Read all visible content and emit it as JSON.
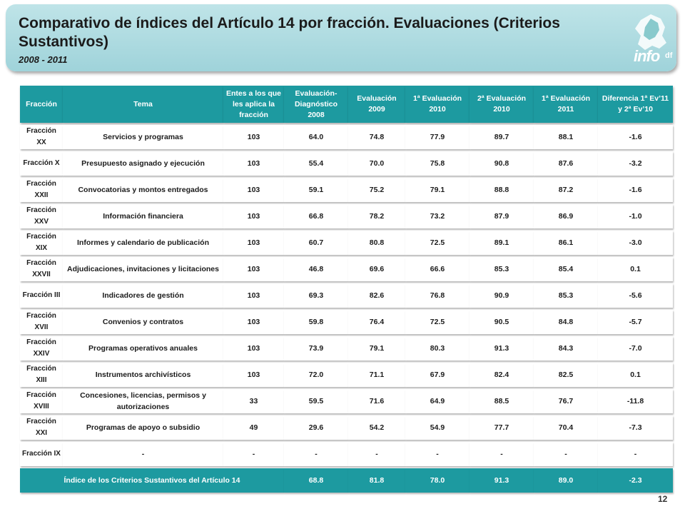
{
  "header": {
    "title": "Comparativo de índices del Artículo 14 por fracción. Evaluaciones (Criterios Sustantivos)",
    "subtitle": "2008 - 2011",
    "logo_text": "info",
    "logo_badge": "df"
  },
  "table": {
    "columns": [
      "Fracción",
      "Tema",
      "Entes a los que les aplica la fracción",
      "Evaluación-Diagnóstico 2008",
      "Evaluación 2009",
      "1ª Evaluación 2010",
      "2ª Evaluación 2010",
      "1ª Evaluación 2011",
      "Diferencia 1ª Ev’11 y 2ª Ev’10"
    ],
    "rows": [
      {
        "fraccion": "Fracción XX",
        "tema": "Servicios y programas",
        "entes": "103",
        "d2008": "64.0",
        "e2009": "74.8",
        "e1_2010": "77.9",
        "e2_2010": "89.7",
        "e1_2011": "88.1",
        "dif": "-1.6"
      },
      {
        "fraccion": "Fracción X",
        "tema": "Presupuesto asignado y ejecución",
        "entes": "103",
        "d2008": "55.4",
        "e2009": "70.0",
        "e1_2010": "75.8",
        "e2_2010": "90.8",
        "e1_2011": "87.6",
        "dif": "-3.2"
      },
      {
        "fraccion": "Fracción XXII",
        "tema": "Convocatorias y montos entregados",
        "entes": "103",
        "d2008": "59.1",
        "e2009": "75.2",
        "e1_2010": "79.1",
        "e2_2010": "88.8",
        "e1_2011": "87.2",
        "dif": "-1.6"
      },
      {
        "fraccion": "Fracción XXV",
        "tema": "Información financiera",
        "entes": "103",
        "d2008": "66.8",
        "e2009": "78.2",
        "e1_2010": "73.2",
        "e2_2010": "87.9",
        "e1_2011": "86.9",
        "dif": "-1.0"
      },
      {
        "fraccion": "Fracción XIX",
        "tema": "Informes y calendario de publicación",
        "entes": "103",
        "d2008": "60.7",
        "e2009": "80.8",
        "e1_2010": "72.5",
        "e2_2010": "89.1",
        "e1_2011": "86.1",
        "dif": "-3.0"
      },
      {
        "fraccion": "Fracción XXVII",
        "tema": "Adjudicaciones, invitaciones y licitaciones",
        "entes": "103",
        "d2008": "46.8",
        "e2009": "69.6",
        "e1_2010": "66.6",
        "e2_2010": "85.3",
        "e1_2011": "85.4",
        "dif": "0.1"
      },
      {
        "fraccion": "Fracción III",
        "tema": "Indicadores de gestión",
        "entes": "103",
        "d2008": "69.3",
        "e2009": "82.6",
        "e1_2010": "76.8",
        "e2_2010": "90.9",
        "e1_2011": "85.3",
        "dif": "-5.6"
      },
      {
        "fraccion": "Fracción XVII",
        "tema": "Convenios y contratos",
        "entes": "103",
        "d2008": "59.8",
        "e2009": "76.4",
        "e1_2010": "72.5",
        "e2_2010": "90.5",
        "e1_2011": "84.8",
        "dif": "-5.7"
      },
      {
        "fraccion": "Fracción XXIV",
        "tema": "Programas operativos anuales",
        "entes": "103",
        "d2008": "73.9",
        "e2009": "79.1",
        "e1_2010": "80.3",
        "e2_2010": "91.3",
        "e1_2011": "84.3",
        "dif": "-7.0"
      },
      {
        "fraccion": "Fracción XIII",
        "tema": "Instrumentos archivísticos",
        "entes": "103",
        "d2008": "72.0",
        "e2009": "71.1",
        "e1_2010": "67.9",
        "e2_2010": "82.4",
        "e1_2011": "82.5",
        "dif": "0.1"
      },
      {
        "fraccion": "Fracción XVIII",
        "tema": "Concesiones, licencias, permisos y autorizaciones",
        "entes": "33",
        "d2008": "59.5",
        "e2009": "71.6",
        "e1_2010": "64.9",
        "e2_2010": "88.5",
        "e1_2011": "76.7",
        "dif": "-11.8"
      },
      {
        "fraccion": "Fracción XXI",
        "tema": "Programas de apoyo o subsidio",
        "entes": "49",
        "d2008": "29.6",
        "e2009": "54.2",
        "e1_2010": "54.9",
        "e2_2010": "77.7",
        "e1_2011": "70.4",
        "dif": "-7.3"
      },
      {
        "fraccion": "Fracción IX",
        "tema": "-",
        "entes": "-",
        "d2008": "-",
        "e2009": "-",
        "e1_2010": "-",
        "e2_2010": "-",
        "e1_2011": "-",
        "dif": "-"
      }
    ],
    "total": {
      "label": "Índice de los Criterios Sustantivos del Artículo 14",
      "d2008": "68.8",
      "e2009": "81.8",
      "e1_2010": "78.0",
      "e2_2010": "91.3",
      "e1_2011": "89.0",
      "dif": "-2.3"
    }
  },
  "page_number": "12",
  "colors": {
    "banner": "#a8d8de",
    "header_fill": "#1d9aa0",
    "text": "#1b1b1b"
  }
}
